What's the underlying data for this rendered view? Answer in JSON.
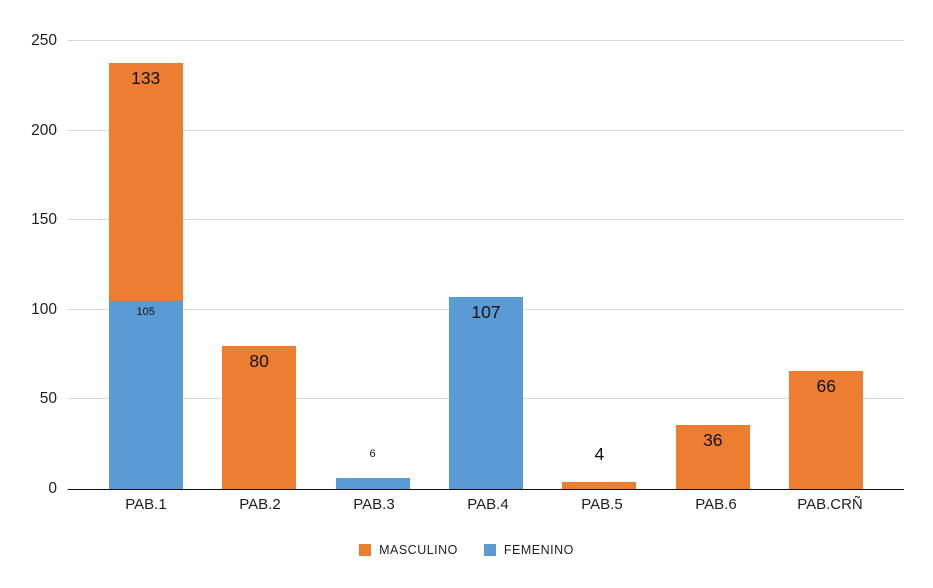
{
  "chart_data": {
    "type": "bar",
    "stacked": true,
    "title": "",
    "categories": [
      "PAB.1",
      "PAB.2",
      "PAB.3",
      "PAB.4",
      "PAB.5",
      "PAB.6",
      "PAB.CRÑ"
    ],
    "series": [
      {
        "name": "MASCULINO",
        "color": "#ED7D31",
        "values": [
          133,
          80,
          0,
          0,
          4,
          36,
          66
        ]
      },
      {
        "name": "FEMENINO",
        "color": "#5B9BD5",
        "values": [
          105,
          0,
          6,
          107,
          0,
          0,
          0
        ]
      }
    ],
    "stack_order_bottom_to_top": [
      "FEMENINO",
      "MASCULINO"
    ],
    "y_axis": {
      "min": 0,
      "max": 250,
      "tick_step": 50,
      "ticks": [
        0,
        50,
        100,
        150,
        200,
        250
      ]
    },
    "xlabel": "",
    "ylabel": "",
    "grid": "horizontal",
    "legend": {
      "position": "bottom",
      "entries": [
        "MASCULINO",
        "FEMENINO"
      ]
    },
    "data_labels": {
      "visible": true,
      "placement_default": "inside-end",
      "small_font_points": [
        {
          "series": "FEMENINO",
          "category": "PAB.1",
          "value": 105
        },
        {
          "series": "FEMENINO",
          "category": "PAB.3",
          "value": 6
        }
      ],
      "outside_points": [
        {
          "series": "FEMENINO",
          "category": "PAB.3",
          "value": 6
        },
        {
          "series": "MASCULINO",
          "category": "PAB.5",
          "value": 4
        }
      ]
    },
    "colors": {
      "masculino": "#ED7D31",
      "femenino": "#5B9BD5",
      "gridline": "#D9D9D9",
      "axis_line": "#111111",
      "text": "#1f1f1f",
      "background": "#ffffff"
    }
  }
}
